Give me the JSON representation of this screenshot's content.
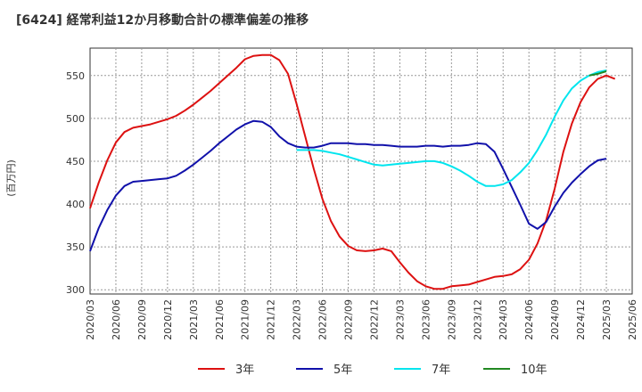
{
  "chart_data": {
    "type": "line",
    "title": "[6424]  経常利益12か月移動合計の標準偏差の推移",
    "ylabel": "(百万円)",
    "xlabel": "",
    "ylim": [
      295,
      582
    ],
    "yticks": [
      300,
      350,
      400,
      450,
      500,
      550
    ],
    "x_range": [
      "2020-03",
      "2025-06"
    ],
    "xticks": [
      "2020/03",
      "2020/06",
      "2020/09",
      "2020/12",
      "2021/03",
      "2021/06",
      "2021/09",
      "2021/12",
      "2022/03",
      "2022/06",
      "2022/09",
      "2022/12",
      "2023/03",
      "2023/06",
      "2023/09",
      "2023/12",
      "2024/03",
      "2024/06",
      "2024/09",
      "2024/12",
      "2025/03",
      "2025/06"
    ],
    "grid": true,
    "legend_position": "bottom",
    "series": [
      {
        "name": "3年",
        "color": "#dd1111",
        "points": [
          [
            "2020-03",
            395
          ],
          [
            "2020-04",
            425
          ],
          [
            "2020-05",
            451
          ],
          [
            "2020-06",
            472
          ],
          [
            "2020-07",
            484
          ],
          [
            "2020-08",
            489
          ],
          [
            "2020-09",
            491
          ],
          [
            "2020-10",
            493
          ],
          [
            "2020-11",
            496
          ],
          [
            "2020-12",
            499
          ],
          [
            "2021-01",
            503
          ],
          [
            "2021-02",
            509
          ],
          [
            "2021-03",
            516
          ],
          [
            "2021-04",
            524
          ],
          [
            "2021-05",
            532
          ],
          [
            "2021-06",
            541
          ],
          [
            "2021-07",
            550
          ],
          [
            "2021-08",
            559
          ],
          [
            "2021-09",
            569
          ],
          [
            "2021-10",
            573
          ],
          [
            "2021-11",
            574
          ],
          [
            "2021-12",
            574
          ],
          [
            "2022-01",
            568
          ],
          [
            "2022-02",
            552
          ],
          [
            "2022-03",
            517
          ],
          [
            "2022-04",
            479
          ],
          [
            "2022-05",
            441
          ],
          [
            "2022-06",
            406
          ],
          [
            "2022-07",
            380
          ],
          [
            "2022-08",
            362
          ],
          [
            "2022-09",
            351
          ],
          [
            "2022-10",
            346
          ],
          [
            "2022-11",
            345
          ],
          [
            "2022-12",
            346
          ],
          [
            "2023-01",
            348
          ],
          [
            "2023-02",
            345
          ],
          [
            "2023-03",
            332
          ],
          [
            "2023-04",
            320
          ],
          [
            "2023-05",
            310
          ],
          [
            "2023-06",
            304
          ],
          [
            "2023-07",
            301
          ],
          [
            "2023-08",
            301
          ],
          [
            "2023-09",
            304
          ],
          [
            "2023-10",
            305
          ],
          [
            "2023-11",
            306
          ],
          [
            "2023-12",
            309
          ],
          [
            "2024-01",
            312
          ],
          [
            "2024-02",
            315
          ],
          [
            "2024-03",
            316
          ],
          [
            "2024-04",
            318
          ],
          [
            "2024-05",
            324
          ],
          [
            "2024-06",
            335
          ],
          [
            "2024-07",
            354
          ],
          [
            "2024-08",
            381
          ],
          [
            "2024-09",
            418
          ],
          [
            "2024-10",
            461
          ],
          [
            "2024-11",
            494
          ],
          [
            "2024-12",
            519
          ],
          [
            "2025-01",
            536
          ],
          [
            "2025-02",
            546
          ],
          [
            "2025-03",
            550
          ],
          [
            "2025-04",
            546
          ]
        ]
      },
      {
        "name": "5年",
        "color": "#1111aa",
        "points": [
          [
            "2020-03",
            345
          ],
          [
            "2020-04",
            372
          ],
          [
            "2020-05",
            393
          ],
          [
            "2020-06",
            410
          ],
          [
            "2020-07",
            421
          ],
          [
            "2020-08",
            426
          ],
          [
            "2020-09",
            427
          ],
          [
            "2020-10",
            428
          ],
          [
            "2020-11",
            429
          ],
          [
            "2020-12",
            430
          ],
          [
            "2021-01",
            433
          ],
          [
            "2021-02",
            439
          ],
          [
            "2021-03",
            446
          ],
          [
            "2021-04",
            454
          ],
          [
            "2021-05",
            462
          ],
          [
            "2021-06",
            471
          ],
          [
            "2021-07",
            479
          ],
          [
            "2021-08",
            487
          ],
          [
            "2021-09",
            493
          ],
          [
            "2021-10",
            497
          ],
          [
            "2021-11",
            496
          ],
          [
            "2021-12",
            490
          ],
          [
            "2022-01",
            479
          ],
          [
            "2022-02",
            471
          ],
          [
            "2022-03",
            467
          ],
          [
            "2022-04",
            466
          ],
          [
            "2022-05",
            466
          ],
          [
            "2022-06",
            468
          ],
          [
            "2022-07",
            471
          ],
          [
            "2022-08",
            471
          ],
          [
            "2022-09",
            471
          ],
          [
            "2022-10",
            470
          ],
          [
            "2022-11",
            470
          ],
          [
            "2022-12",
            469
          ],
          [
            "2023-01",
            469
          ],
          [
            "2023-02",
            468
          ],
          [
            "2023-03",
            467
          ],
          [
            "2023-04",
            467
          ],
          [
            "2023-05",
            467
          ],
          [
            "2023-06",
            468
          ],
          [
            "2023-07",
            468
          ],
          [
            "2023-08",
            467
          ],
          [
            "2023-09",
            468
          ],
          [
            "2023-10",
            468
          ],
          [
            "2023-11",
            469
          ],
          [
            "2023-12",
            471
          ],
          [
            "2024-01",
            470
          ],
          [
            "2024-02",
            461
          ],
          [
            "2024-03",
            441
          ],
          [
            "2024-04",
            420
          ],
          [
            "2024-05",
            399
          ],
          [
            "2024-06",
            377
          ],
          [
            "2024-07",
            371
          ],
          [
            "2024-08",
            379
          ],
          [
            "2024-09",
            397
          ],
          [
            "2024-10",
            413
          ],
          [
            "2024-11",
            425
          ],
          [
            "2024-12",
            435
          ],
          [
            "2025-01",
            444
          ],
          [
            "2025-02",
            451
          ],
          [
            "2025-03",
            453
          ]
        ]
      },
      {
        "name": "7年",
        "color": "#00e5ee",
        "points": [
          [
            "2022-03",
            463
          ],
          [
            "2022-04",
            463
          ],
          [
            "2022-05",
            463
          ],
          [
            "2022-06",
            462
          ],
          [
            "2022-07",
            460
          ],
          [
            "2022-08",
            458
          ],
          [
            "2022-09",
            455
          ],
          [
            "2022-10",
            452
          ],
          [
            "2022-11",
            449
          ],
          [
            "2022-12",
            446
          ],
          [
            "2023-01",
            445
          ],
          [
            "2023-02",
            446
          ],
          [
            "2023-03",
            447
          ],
          [
            "2023-04",
            448
          ],
          [
            "2023-05",
            449
          ],
          [
            "2023-06",
            450
          ],
          [
            "2023-07",
            450
          ],
          [
            "2023-08",
            448
          ],
          [
            "2023-09",
            444
          ],
          [
            "2023-10",
            439
          ],
          [
            "2023-11",
            433
          ],
          [
            "2023-12",
            426
          ],
          [
            "2024-01",
            421
          ],
          [
            "2024-02",
            421
          ],
          [
            "2024-03",
            423
          ],
          [
            "2024-04",
            428
          ],
          [
            "2024-05",
            437
          ],
          [
            "2024-06",
            448
          ],
          [
            "2024-07",
            463
          ],
          [
            "2024-08",
            481
          ],
          [
            "2024-09",
            502
          ],
          [
            "2024-10",
            521
          ],
          [
            "2024-11",
            535
          ],
          [
            "2024-12",
            544
          ],
          [
            "2025-01",
            550
          ],
          [
            "2025-02",
            554
          ],
          [
            "2025-03",
            556
          ]
        ]
      },
      {
        "name": "10年",
        "color": "#228822",
        "points": [
          [
            "2025-01",
            550
          ],
          [
            "2025-02",
            552
          ],
          [
            "2025-03",
            555
          ]
        ]
      }
    ]
  }
}
